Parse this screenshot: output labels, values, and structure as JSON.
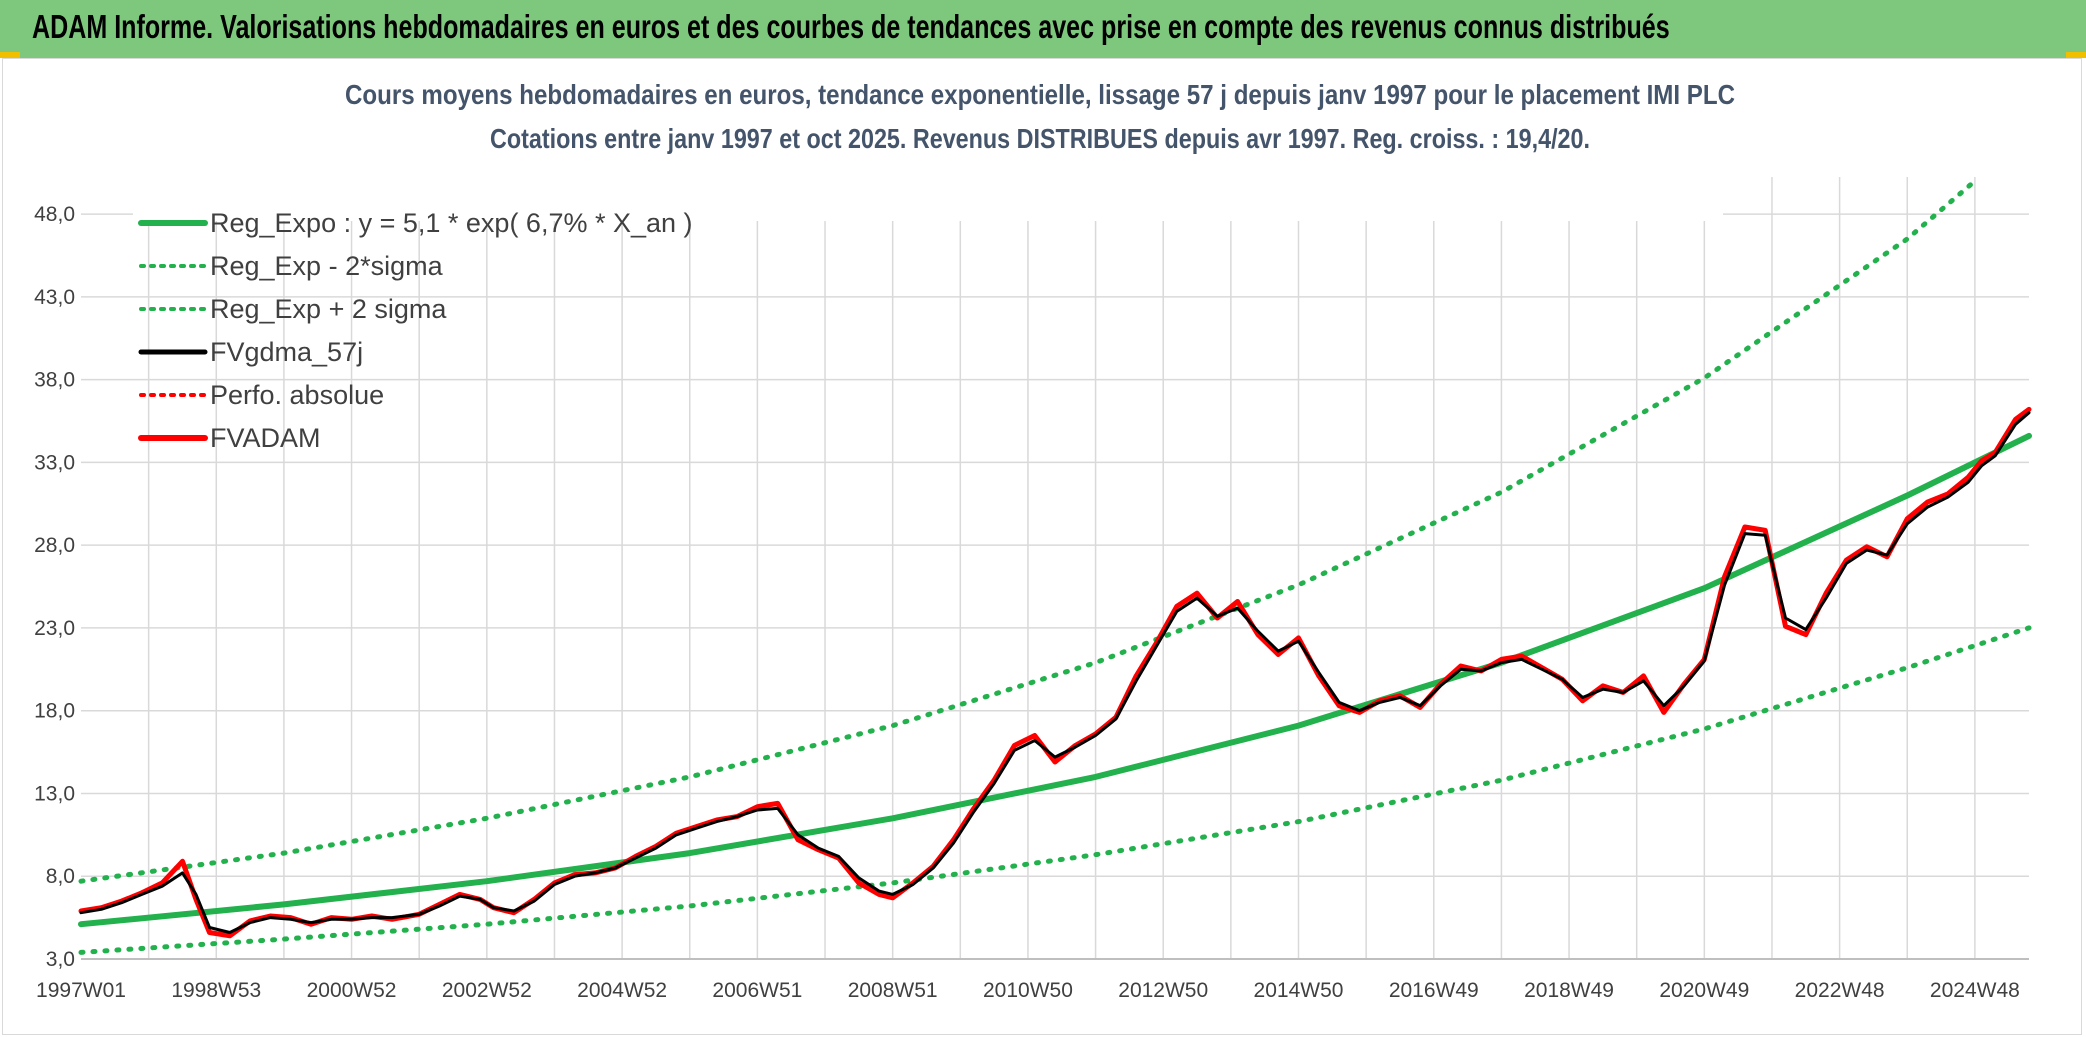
{
  "banner": {
    "text": "ADAM Informe. Valorisations hebdomadaires en euros et des courbes de tendances avec prise en compte des revenus connus distribués"
  },
  "colors": {
    "banner_bg": "#7ec87e",
    "reg_expo": "#22b14c",
    "band": "#22b14c",
    "fvgdma": "#000000",
    "perfo": "#ff0000",
    "fvadam": "#ff0000",
    "title": "#44546a"
  },
  "chart_data": {
    "type": "line",
    "title_line1": "Cours moyens hebdomadaires en euros, tendance exponentielle, lissage 57 j depuis janv 1997 pour le placement IMI PLC",
    "title_line2": "Cotations entre janv 1997 et oct 2025. Revenus DISTRIBUES depuis avr 1997. Reg. croiss. : 19,4/20.",
    "xlabel": "",
    "ylabel": "",
    "x_range_years": [
      1997.0,
      2025.8
    ],
    "x_tick_labels": [
      "1997W01",
      "1998W53",
      "2000W52",
      "2002W52",
      "2004W52",
      "2006W51",
      "2008W51",
      "2010W50",
      "2012W50",
      "2014W50",
      "2016W49",
      "2018W49",
      "2020W49",
      "2022W48",
      "2024W48"
    ],
    "x_tick_years": [
      1997.0,
      1999.0,
      2001.0,
      2003.0,
      2005.0,
      2007.0,
      2009.0,
      2011.0,
      2013.0,
      2015.0,
      2017.0,
      2019.0,
      2021.0,
      2023.0,
      2025.0
    ],
    "y_ticks": [
      "3,0",
      "8,0",
      "13,0",
      "18,0",
      "23,0",
      "28,0",
      "33,0",
      "38,0",
      "43,0",
      "48,0"
    ],
    "ylim": [
      3.0,
      50.0
    ],
    "grid": true,
    "legend": [
      {
        "key": "reg_expo",
        "label": "Reg_Expo : y = 5,1 * exp( 6,7% *  X_an )",
        "style": "solid-thick",
        "color": "#22b14c"
      },
      {
        "key": "reg_minus",
        "label": "Reg_Exp - 2*sigma",
        "style": "dotted",
        "color": "#22b14c"
      },
      {
        "key": "reg_plus",
        "label": "Reg_Exp + 2 sigma",
        "style": "dotted",
        "color": "#22b14c"
      },
      {
        "key": "fvgdma",
        "label": "FVgdma_57j",
        "style": "solid",
        "color": "#000000"
      },
      {
        "key": "perfo",
        "label": "Perfo. absolue",
        "style": "dotted",
        "color": "#ff0000"
      },
      {
        "key": "fvadam",
        "label": "FVADAM",
        "style": "solid-thick",
        "color": "#ff0000"
      }
    ],
    "series": [
      {
        "name": "Reg_Expo",
        "x": [
          1997.0,
          2000.0,
          2003.0,
          2006.0,
          2009.0,
          2012.0,
          2015.0,
          2018.0,
          2021.0,
          2024.0,
          2025.8
        ],
        "values": [
          5.1,
          6.3,
          7.7,
          9.4,
          11.5,
          14.0,
          17.1,
          20.9,
          25.4,
          31.0,
          34.6
        ]
      },
      {
        "name": "Reg_Exp - 2*sigma",
        "x": [
          1997.0,
          2000.0,
          2003.0,
          2006.0,
          2009.0,
          2012.0,
          2015.0,
          2018.0,
          2021.0,
          2024.0,
          2025.8
        ],
        "values": [
          3.4,
          4.2,
          5.1,
          6.2,
          7.6,
          9.3,
          11.3,
          13.8,
          16.9,
          20.6,
          23.0
        ]
      },
      {
        "name": "Reg_Exp + 2 sigma",
        "x": [
          1997.0,
          2000.0,
          2003.0,
          2006.0,
          2009.0,
          2012.0,
          2015.0,
          2018.0,
          2021.0,
          2024.0,
          2025.0
        ],
        "values": [
          7.7,
          9.4,
          11.5,
          14.0,
          17.1,
          20.9,
          25.6,
          31.2,
          38.1,
          46.5,
          50.0
        ]
      },
      {
        "name": "FVADAM",
        "x": [
          1997.0,
          1997.3,
          1997.6,
          1997.9,
          1998.2,
          1998.5,
          1998.7,
          1998.9,
          1999.2,
          1999.5,
          1999.8,
          2000.1,
          2000.4,
          2000.7,
          2001.0,
          2001.3,
          2001.6,
          2002.0,
          2002.3,
          2002.6,
          2002.9,
          2003.1,
          2003.4,
          2003.7,
          2004.0,
          2004.3,
          2004.6,
          2004.9,
          2005.2,
          2005.5,
          2005.8,
          2006.1,
          2006.4,
          2006.7,
          2007.0,
          2007.3,
          2007.6,
          2007.9,
          2008.2,
          2008.5,
          2008.8,
          2009.0,
          2009.3,
          2009.6,
          2009.9,
          2010.2,
          2010.5,
          2010.8,
          2011.1,
          2011.4,
          2011.7,
          2012.0,
          2012.3,
          2012.6,
          2012.9,
          2013.2,
          2013.5,
          2013.8,
          2014.1,
          2014.4,
          2014.7,
          2015.0,
          2015.3,
          2015.6,
          2015.9,
          2016.2,
          2016.5,
          2016.8,
          2017.1,
          2017.4,
          2017.7,
          2018.0,
          2018.3,
          2018.6,
          2018.9,
          2019.2,
          2019.5,
          2019.8,
          2020.1,
          2020.4,
          2020.7,
          2021.0,
          2021.3,
          2021.6,
          2021.9,
          2022.2,
          2022.5,
          2022.8,
          2023.1,
          2023.4,
          2023.7,
          2024.0,
          2024.3,
          2024.6,
          2024.9,
          2025.1,
          2025.3,
          2025.6,
          2025.8
        ],
        "values": [
          5.9,
          6.1,
          6.5,
          7.0,
          7.6,
          8.9,
          6.6,
          4.6,
          4.4,
          5.3,
          5.6,
          5.5,
          5.1,
          5.5,
          5.4,
          5.6,
          5.4,
          5.7,
          6.3,
          6.9,
          6.6,
          6.1,
          5.8,
          6.6,
          7.6,
          8.1,
          8.2,
          8.5,
          9.2,
          9.8,
          10.6,
          11.0,
          11.4,
          11.6,
          12.2,
          12.4,
          10.2,
          9.6,
          9.1,
          7.6,
          6.9,
          6.7,
          7.6,
          8.6,
          10.2,
          12.1,
          13.8,
          15.9,
          16.5,
          14.9,
          15.9,
          16.6,
          17.6,
          20.1,
          22.1,
          24.3,
          25.1,
          23.6,
          24.6,
          22.6,
          21.4,
          22.4,
          20.1,
          18.3,
          17.9,
          18.6,
          18.9,
          18.2,
          19.6,
          20.7,
          20.4,
          21.1,
          21.3,
          20.6,
          19.9,
          18.6,
          19.5,
          19.1,
          20.1,
          17.9,
          19.6,
          21.1,
          26.1,
          29.1,
          28.9,
          23.1,
          22.6,
          25.1,
          27.1,
          27.9,
          27.3,
          29.6,
          30.6,
          31.1,
          32.1,
          33.1,
          33.6,
          35.6,
          36.2
        ]
      },
      {
        "name": "FVgdma_57j",
        "x": [
          1997.0,
          1997.3,
          1997.6,
          1997.9,
          1998.2,
          1998.5,
          1998.7,
          1998.9,
          1999.2,
          1999.5,
          1999.8,
          2000.1,
          2000.4,
          2000.7,
          2001.0,
          2001.3,
          2001.6,
          2002.0,
          2002.3,
          2002.6,
          2002.9,
          2003.1,
          2003.4,
          2003.7,
          2004.0,
          2004.3,
          2004.6,
          2004.9,
          2005.2,
          2005.5,
          2005.8,
          2006.1,
          2006.4,
          2006.7,
          2007.0,
          2007.3,
          2007.6,
          2007.9,
          2008.2,
          2008.5,
          2008.8,
          2009.0,
          2009.3,
          2009.6,
          2009.9,
          2010.2,
          2010.5,
          2010.8,
          2011.1,
          2011.4,
          2011.7,
          2012.0,
          2012.3,
          2012.6,
          2012.9,
          2013.2,
          2013.5,
          2013.8,
          2014.1,
          2014.4,
          2014.7,
          2015.0,
          2015.3,
          2015.6,
          2015.9,
          2016.2,
          2016.5,
          2016.8,
          2017.1,
          2017.4,
          2017.7,
          2018.0,
          2018.3,
          2018.6,
          2018.9,
          2019.2,
          2019.5,
          2019.8,
          2020.1,
          2020.4,
          2020.7,
          2021.0,
          2021.3,
          2021.6,
          2021.9,
          2022.2,
          2022.5,
          2022.8,
          2023.1,
          2023.4,
          2023.7,
          2024.0,
          2024.3,
          2024.6,
          2024.9,
          2025.1,
          2025.3,
          2025.6,
          2025.8
        ],
        "values": [
          5.8,
          6.0,
          6.4,
          6.9,
          7.4,
          8.2,
          6.9,
          4.9,
          4.6,
          5.2,
          5.5,
          5.4,
          5.2,
          5.4,
          5.4,
          5.5,
          5.5,
          5.7,
          6.2,
          6.8,
          6.6,
          6.1,
          5.9,
          6.5,
          7.5,
          8.0,
          8.2,
          8.5,
          9.1,
          9.7,
          10.5,
          10.9,
          11.3,
          11.6,
          12.0,
          12.1,
          10.5,
          9.7,
          9.2,
          7.9,
          7.1,
          6.9,
          7.5,
          8.5,
          10.0,
          11.9,
          13.6,
          15.6,
          16.2,
          15.2,
          15.8,
          16.5,
          17.5,
          19.8,
          21.9,
          24.0,
          24.8,
          23.7,
          24.2,
          22.8,
          21.6,
          22.2,
          20.3,
          18.5,
          18.0,
          18.5,
          18.8,
          18.3,
          19.5,
          20.5,
          20.4,
          20.9,
          21.1,
          20.5,
          19.9,
          18.8,
          19.3,
          19.1,
          19.8,
          18.3,
          19.5,
          21.0,
          25.6,
          28.7,
          28.6,
          23.6,
          22.9,
          24.8,
          26.9,
          27.7,
          27.4,
          29.3,
          30.3,
          30.9,
          31.8,
          32.8,
          33.4,
          35.3,
          36.0
        ]
      }
    ]
  }
}
